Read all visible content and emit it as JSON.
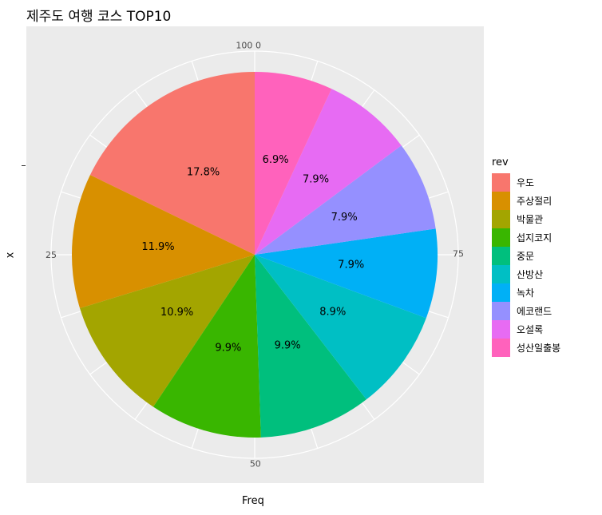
{
  "title": "제주도 여행 코스 TOP10",
  "chart_data": {
    "type": "pie",
    "title": "제주도 여행 코스 TOP10",
    "xlabel": "Freq",
    "ylabel": "x",
    "legend_title": "rev",
    "legend_position": "right",
    "grid": true,
    "theta_ticks": [
      {
        "value": 0,
        "label": "0"
      },
      {
        "value": 25,
        "label": "25"
      },
      {
        "value": 50,
        "label": "50"
      },
      {
        "value": 75,
        "label": "75"
      },
      {
        "value": 100,
        "label": "100"
      }
    ],
    "slices": [
      {
        "label": "우도",
        "value": 17.8,
        "pct_label": "17.8%",
        "color": "#F8766D"
      },
      {
        "label": "주상절리",
        "value": 11.9,
        "pct_label": "11.9%",
        "color": "#D89000"
      },
      {
        "label": "박물관",
        "value": 10.9,
        "pct_label": "10.9%",
        "color": "#A3A500"
      },
      {
        "label": "섭지코지",
        "value": 9.9,
        "pct_label": "9.9%",
        "color": "#39B600"
      },
      {
        "label": "중문",
        "value": 9.9,
        "pct_label": "9.9%",
        "color": "#00BF7D"
      },
      {
        "label": "산방산",
        "value": 8.9,
        "pct_label": "8.9%",
        "color": "#00BFC4"
      },
      {
        "label": "녹차",
        "value": 7.9,
        "pct_label": "7.9%",
        "color": "#00B0F6"
      },
      {
        "label": "에코랜드",
        "value": 7.9,
        "pct_label": "7.9%",
        "color": "#9590FF"
      },
      {
        "label": "오설록",
        "value": 7.9,
        "pct_label": "7.9%",
        "color": "#E76BF3"
      },
      {
        "label": "성산일출봉",
        "value": 6.9,
        "pct_label": "6.9%",
        "color": "#FF62BC"
      }
    ]
  }
}
